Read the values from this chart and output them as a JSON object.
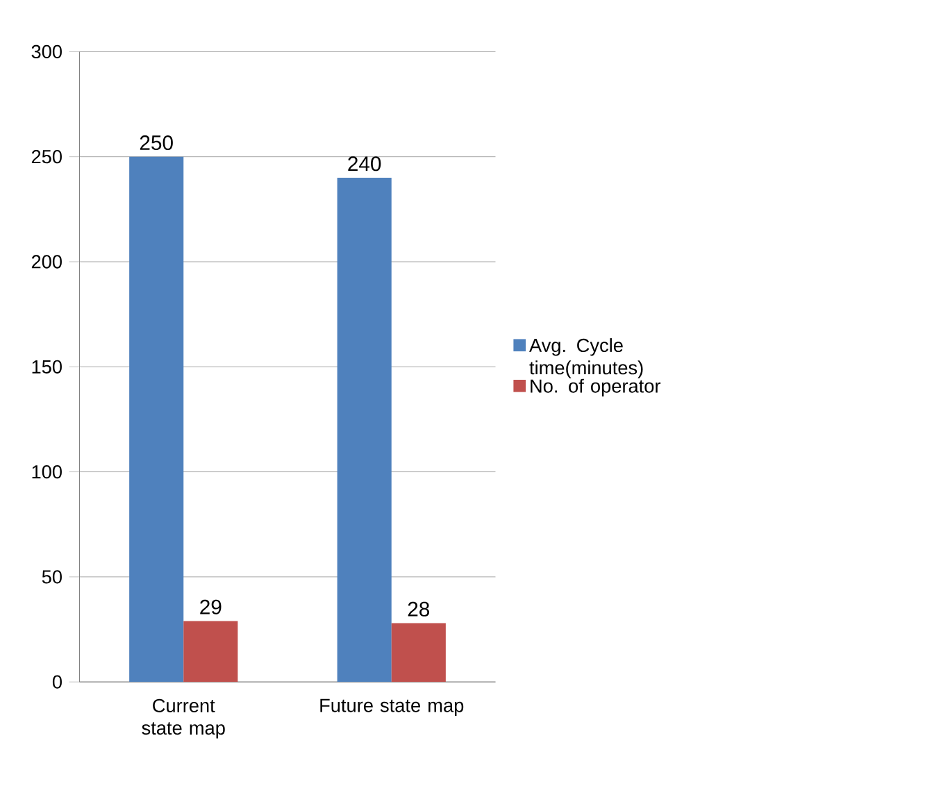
{
  "chart_data": {
    "type": "bar",
    "categories": [
      "Current state map",
      "Future state map"
    ],
    "series": [
      {
        "name": "Avg. Cycle time(minutes)",
        "color": "#4f81bd",
        "values": [
          250,
          240
        ]
      },
      {
        "name": "No. of operator",
        "color": "#c0504d",
        "values": [
          29,
          28
        ]
      }
    ],
    "ylim": [
      0,
      300
    ],
    "yticks": [
      0,
      50,
      100,
      150,
      200,
      250,
      300
    ],
    "grid": "y",
    "legend": "right",
    "data_labels": true
  }
}
